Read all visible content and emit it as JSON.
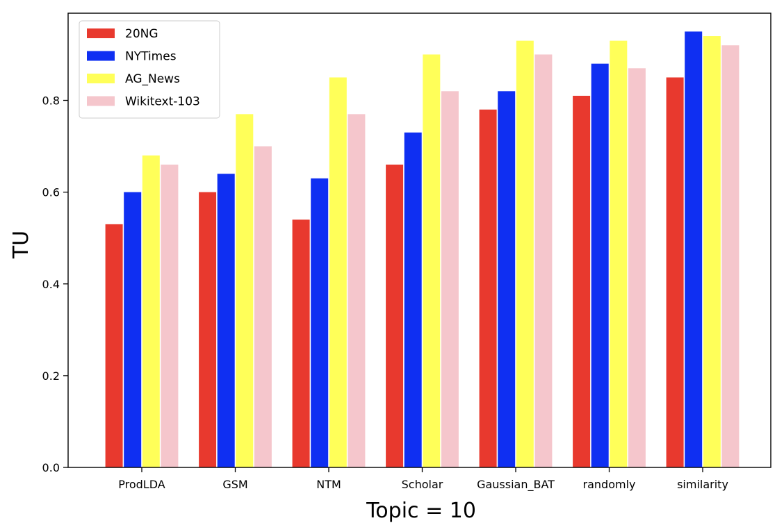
{
  "chart_data": {
    "type": "bar",
    "xlabel": "Topic = 10",
    "ylabel": "TU",
    "categories": [
      "ProdLDA",
      "GSM",
      "NTM",
      "Scholar",
      "Gaussian_BAT",
      "randomly",
      "similarity"
    ],
    "series": [
      {
        "name": "20NG",
        "color": "#e8392e",
        "values": [
          0.53,
          0.6,
          0.54,
          0.66,
          0.78,
          0.81,
          0.85
        ]
      },
      {
        "name": "NYTimes",
        "color": "#0f2ff2",
        "values": [
          0.6,
          0.64,
          0.63,
          0.73,
          0.82,
          0.88,
          0.95
        ]
      },
      {
        "name": "AG_News",
        "color": "#ffff59",
        "values": [
          0.68,
          0.77,
          0.85,
          0.9,
          0.93,
          0.93,
          0.94
        ]
      },
      {
        "name": "Wikitext-103",
        "color": "#f5c6cc",
        "values": [
          0.66,
          0.7,
          0.77,
          0.82,
          0.9,
          0.87,
          0.92
        ]
      }
    ],
    "ylim": [
      0,
      0.99
    ],
    "yticks": [
      0.0,
      0.2,
      0.4,
      0.6,
      0.8
    ],
    "ytick_labels": [
      "0.0",
      "0.2",
      "0.4",
      "0.6",
      "0.8"
    ],
    "grid": false,
    "legend_position": "top-left"
  }
}
